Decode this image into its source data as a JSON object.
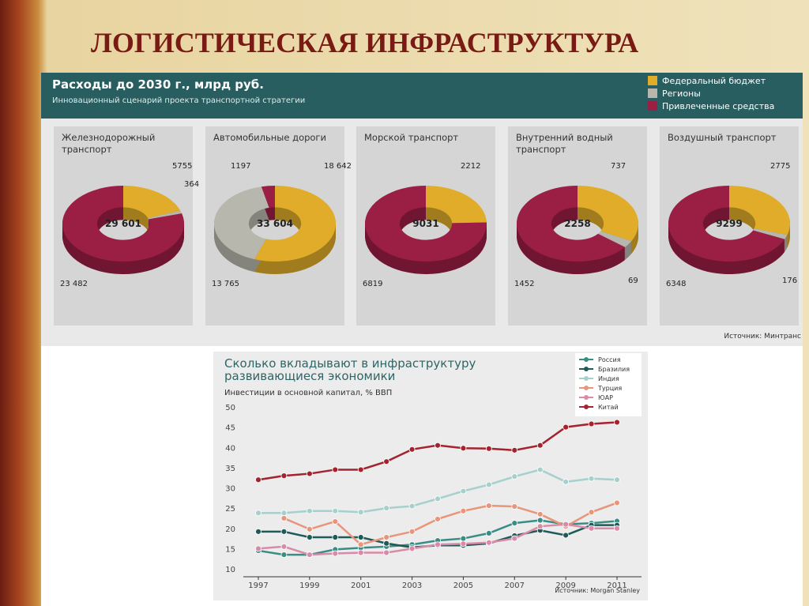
{
  "title": "ЛОГИСТИЧЕСКАЯ ИНФРАСТРУКТУРА",
  "panel": {
    "title": "Расходы до 2030 г., млрд руб.",
    "subtitle": "Инновационный сценарий проекта транспортной стратегии",
    "legend": [
      {
        "name": "Федеральный бюджет",
        "color": "#e0ac2a"
      },
      {
        "name": "Регионы",
        "color": "#b7b7ae"
      },
      {
        "name": "Привлеченные средства",
        "color": "#9b1e45"
      }
    ],
    "source": "Источник: Минтранс"
  },
  "chart_data": [
    {
      "type": "pie",
      "title": "Железнодорожный транспорт",
      "total": {
        "value": 29601,
        "label": "29 601"
      },
      "values": [
        5755,
        364,
        23482
      ],
      "value_labels": [
        "5755",
        "364",
        "23 482"
      ]
    },
    {
      "type": "pie",
      "title": "Автомобильные дороги",
      "total": {
        "value": 33604,
        "label": "33 604"
      },
      "values": [
        18642,
        13765,
        1197
      ],
      "value_labels": [
        "18 642",
        "13 765",
        "1197"
      ]
    },
    {
      "type": "pie",
      "title": "Морской транспорт",
      "total": {
        "value": 9031,
        "label": "9031"
      },
      "values": [
        2212,
        null,
        6819
      ],
      "value_labels": [
        "2212",
        null,
        "6819"
      ]
    },
    {
      "type": "pie",
      "title": "Внутренний водный транспорт",
      "total": {
        "value": 2258,
        "label": "2258"
      },
      "values": [
        737,
        69,
        1452
      ],
      "value_labels": [
        "737",
        "69",
        "1452"
      ]
    },
    {
      "type": "pie",
      "title": "Воздушный транспорт",
      "total": {
        "value": 9299,
        "label": "9299"
      },
      "values": [
        2775,
        176,
        6348
      ],
      "value_labels": [
        "2775",
        "176",
        "6348"
      ]
    },
    {
      "type": "line",
      "title": "Сколько вкладывают в инфраструктуру развивающиеся экономики",
      "subtitle": "Инвестиции в основной капитал, % ВВП",
      "source": "Источник: Morgan Stanley",
      "x": [
        1997,
        1998,
        1999,
        2000,
        2001,
        2002,
        2003,
        2004,
        2005,
        2006,
        2007,
        2008,
        2009,
        2010,
        2011
      ],
      "xlim": [
        1997,
        2011
      ],
      "xticks": [
        1997,
        1999,
        2001,
        2003,
        2005,
        2007,
        2009,
        2011
      ],
      "ylim": [
        10,
        50
      ],
      "yticks": [
        10,
        15,
        20,
        25,
        30,
        35,
        40,
        45,
        50
      ],
      "series": [
        {
          "name": "Россия",
          "color": "#3a8d86",
          "values": [
            14.5,
            13.5,
            13.5,
            14.8,
            15.2,
            15.5,
            16,
            17,
            17.5,
            18.8,
            21.3,
            22,
            21,
            21.3,
            21.8
          ]
        },
        {
          "name": "Бразилия",
          "color": "#1d5a58",
          "values": [
            19.2,
            19.2,
            17.8,
            17.8,
            17.8,
            16.3,
            15.3,
            15.8,
            15.8,
            16.3,
            18.2,
            19.5,
            18.3,
            20.8,
            20.8
          ]
        },
        {
          "name": "Индия",
          "color": "#a6d0cc",
          "values": [
            23.8,
            23.8,
            24.3,
            24.3,
            24,
            25,
            25.5,
            27.3,
            29.2,
            30.8,
            32.8,
            34.5,
            31.5,
            32.3,
            32
          ]
        },
        {
          "name": "Турция",
          "color": "#e8957a",
          "values": [
            null,
            22.5,
            19.8,
            21.7,
            16,
            17.8,
            19.2,
            22.3,
            24.3,
            25.6,
            25.4,
            23.5,
            20.5,
            24,
            26.3
          ]
        },
        {
          "name": "ЮАР",
          "color": "#d98aa8",
          "values": [
            15,
            15.5,
            13.5,
            13.8,
            14,
            14,
            15,
            16,
            16.2,
            16.5,
            17.5,
            20.5,
            21,
            20,
            20
          ]
        },
        {
          "name": "Китай",
          "color": "#a3232e",
          "values": [
            32,
            33,
            33.5,
            34.5,
            34.5,
            36.5,
            39.5,
            40.5,
            39.8,
            39.7,
            39.3,
            40.5,
            45,
            45.8,
            46.2
          ]
        }
      ]
    }
  ]
}
